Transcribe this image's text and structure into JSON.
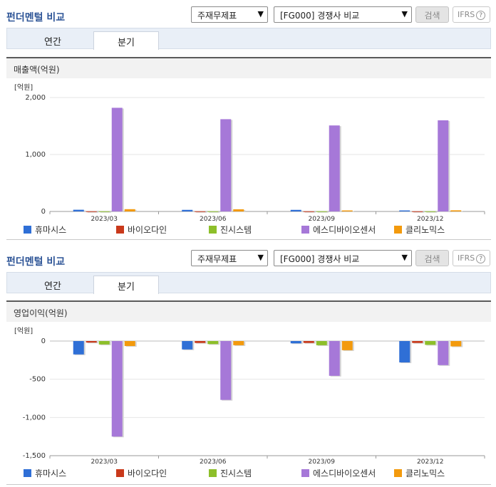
{
  "panels": [
    {
      "title": "펀더멘털 비교",
      "select1": "주재무제표",
      "select2": "[FG000] 경쟁사 비교",
      "search_label": "검색",
      "ifrs_label": "IFRS",
      "tabs": [
        "연간",
        "분기"
      ],
      "section_title": "매출액(억원)"
    },
    {
      "title": "펀더멘털 비교",
      "select1": "주재무제표",
      "select2": "[FG000] 경쟁사 비교",
      "search_label": "검색",
      "ifrs_label": "IFRS",
      "tabs": [
        "연간",
        "분기"
      ],
      "section_title": "영업이익(억원)"
    }
  ],
  "colors": {
    "휴마시스": "#2f6fd6",
    "바이오다인": "#c9391b",
    "진시스템": "#8dbf2a",
    "에스디바이오센서": "#a678d8",
    "클리노믹스": "#f39a0d"
  },
  "chart_data": [
    {
      "type": "bar",
      "title": "매출액(억원)",
      "ylabel": "[억원]",
      "categories": [
        "2023/03",
        "2023/06",
        "2023/09",
        "2023/12"
      ],
      "ylim": [
        0,
        2000
      ],
      "yticks": [
        "0",
        "1,000",
        "2,000"
      ],
      "ytick_values": [
        0,
        1000,
        2000
      ],
      "series": [
        {
          "name": "휴마시스",
          "values": [
            30,
            28,
            28,
            18
          ]
        },
        {
          "name": "바이오다인",
          "values": [
            3,
            3,
            3,
            3
          ]
        },
        {
          "name": "진시스템",
          "values": [
            3,
            3,
            3,
            3
          ]
        },
        {
          "name": "에스디바이오센서",
          "values": [
            1820,
            1620,
            1510,
            1600
          ]
        },
        {
          "name": "클리노믹스",
          "values": [
            40,
            38,
            18,
            20
          ]
        }
      ]
    },
    {
      "type": "bar",
      "title": "영업이익(억원)",
      "ylabel": "[억원]",
      "categories": [
        "2023/03",
        "2023/06",
        "2023/09",
        "2023/12"
      ],
      "ylim": [
        -1500,
        0
      ],
      "yticks": [
        "-1,500",
        "-1,000",
        "-500",
        "0"
      ],
      "ytick_values": [
        -1500,
        -1000,
        -500,
        0
      ],
      "series": [
        {
          "name": "휴마시스",
          "values": [
            -175,
            -110,
            -30,
            -280
          ]
        },
        {
          "name": "바이오다인",
          "values": [
            -20,
            -25,
            -25,
            -25
          ]
        },
        {
          "name": "진시스템",
          "values": [
            -45,
            -40,
            -55,
            -50
          ]
        },
        {
          "name": "에스디바이오센서",
          "values": [
            -1250,
            -770,
            -455,
            -315
          ]
        },
        {
          "name": "클리노믹스",
          "values": [
            -65,
            -55,
            -120,
            -70
          ]
        }
      ]
    }
  ]
}
